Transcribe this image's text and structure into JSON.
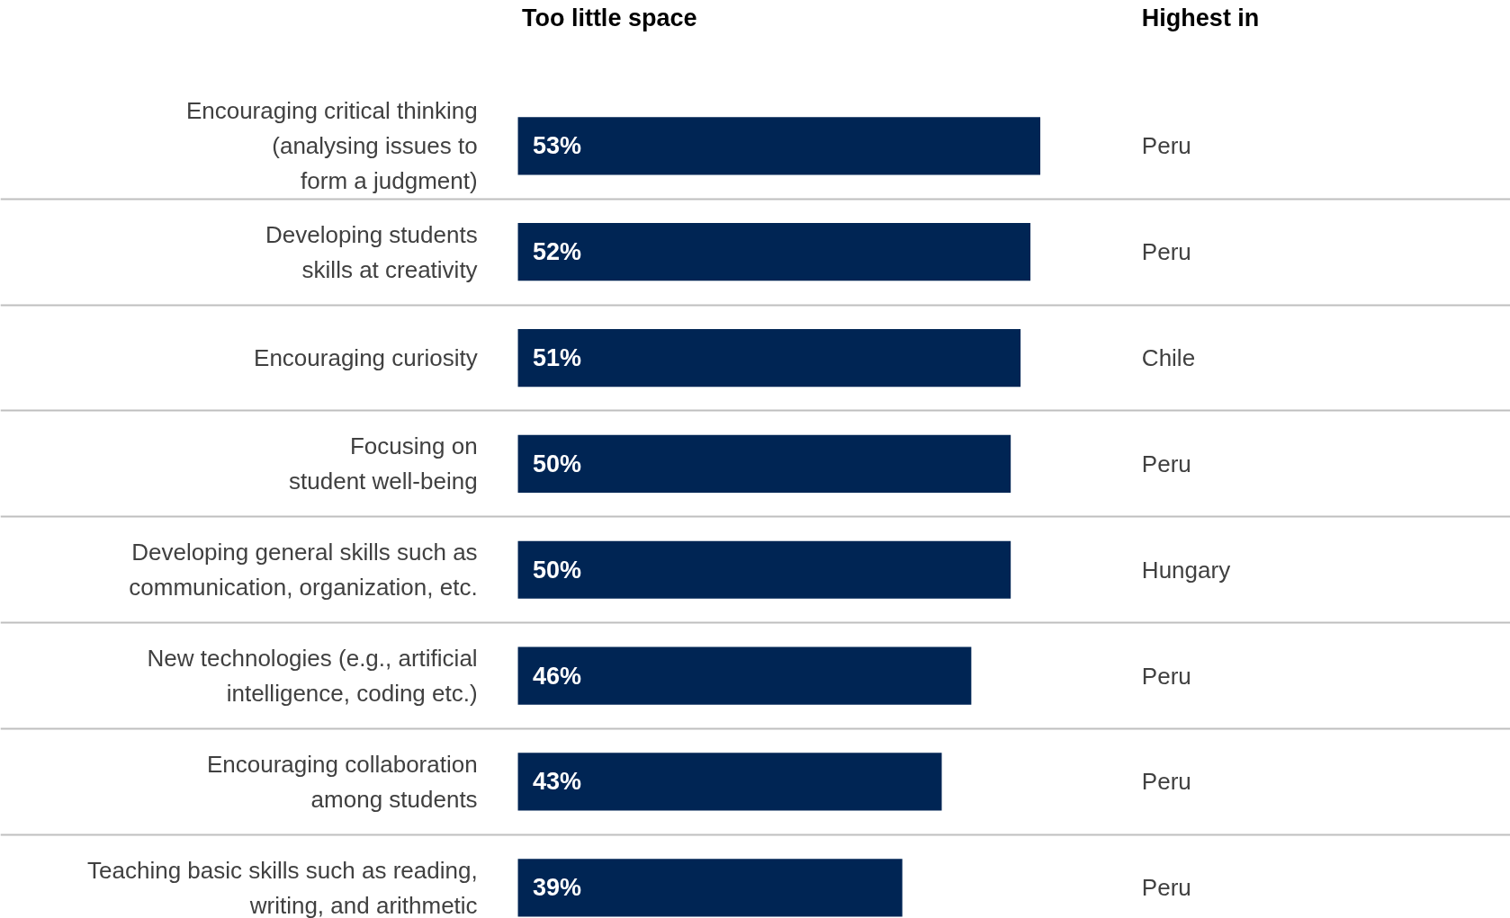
{
  "chart_data": {
    "type": "bar",
    "orientation": "horizontal",
    "title": "Too little space",
    "categories": [
      "Encouraging critical thinking\n(analysing issues to\nform a judgment)",
      "Developing students\nskills at creativity",
      "Encouraging curiosity",
      "Focusing on\nstudent well-being",
      "Developing general skills such as\ncommunication, organization, etc.",
      "New technologies (e.g., artificial\nintelligence, coding etc.)",
      "Encouraging collaboration\namong students",
      "Teaching basic skills such as reading,\nwriting, and arithmetic"
    ],
    "values": [
      53,
      52,
      51,
      50,
      50,
      46,
      43,
      39
    ],
    "value_labels": [
      "53%",
      "52%",
      "51%",
      "50%",
      "50%",
      "46%",
      "43%",
      "39%"
    ],
    "color": "#002554",
    "tick_labels": "y",
    "grid": "y",
    "annotations": [
      "Highest in",
      "Peru",
      "Peru",
      "Chile",
      "Peru",
      "Hungary",
      "Peru",
      "Peru",
      "Peru"
    ]
  }
}
